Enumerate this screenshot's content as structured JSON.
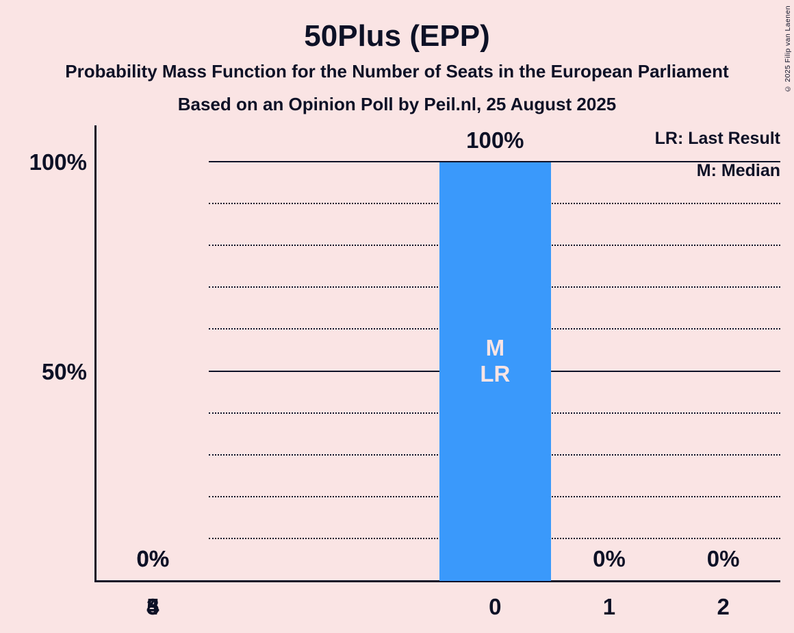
{
  "chart_data": {
    "type": "bar",
    "title": "50Plus (EPP)",
    "subtitle": "Probability Mass Function for the Number of Seats in the European Parliament",
    "source_line": "Based on an Opinion Poll by Peil.nl, 25 August 2025",
    "copyright": "© 2025 Filip van Laenen",
    "categories": [
      "0",
      "1",
      "2",
      "3",
      "4",
      "5"
    ],
    "values": [
      100,
      0,
      0,
      0,
      0,
      0
    ],
    "value_labels": [
      "100%",
      "0%",
      "0%",
      "0%",
      "0%",
      "0%"
    ],
    "xlabel": "",
    "ylabel": "",
    "ylim": [
      0,
      100
    ],
    "ytick_values": [
      100,
      50
    ],
    "ytick_labels": [
      "100%",
      "50%"
    ],
    "grid": {
      "dotted_percents": [
        10,
        20,
        30,
        40,
        60,
        70,
        80,
        90
      ],
      "solid_percents": [
        50,
        100
      ]
    },
    "legend": {
      "lr": "LR: Last Result",
      "m": "M: Median"
    },
    "bar_annotations": [
      {
        "category": "0",
        "lines": [
          "M",
          "LR"
        ]
      }
    ],
    "median_seats": 0,
    "last_result_seats": 0,
    "colors": {
      "background": "#fae4e4",
      "bar": "#3a99fb",
      "ink": "#0d1126",
      "bar_label": "#fae4e4"
    }
  }
}
